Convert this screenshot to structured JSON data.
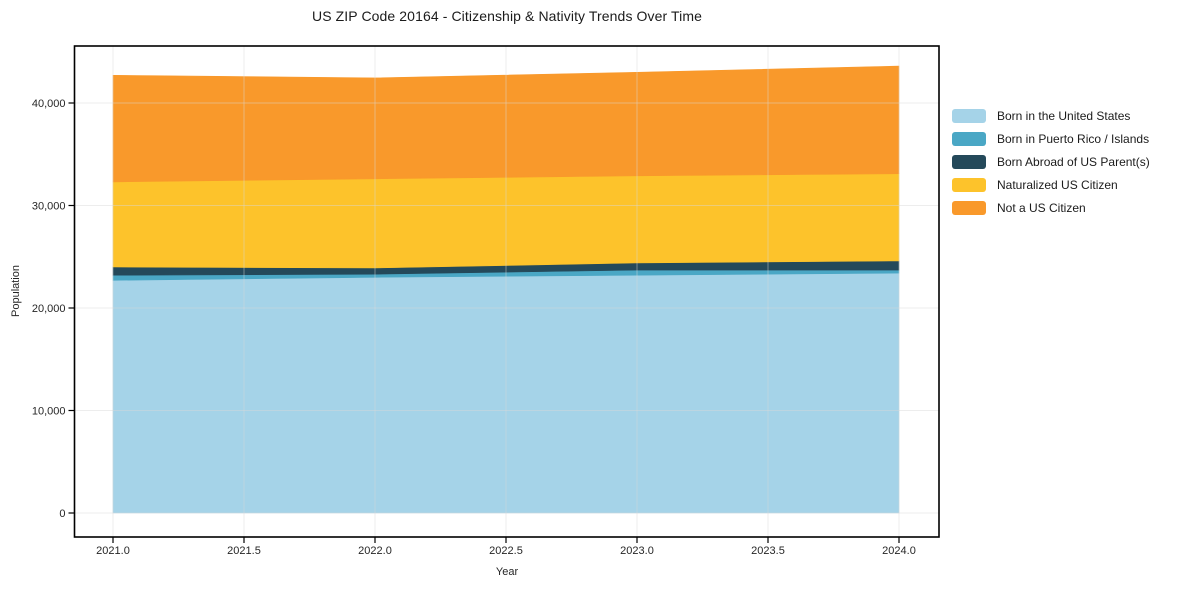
{
  "chart_data": {
    "type": "area",
    "stacked": true,
    "title": "US ZIP Code 20164 - Citizenship & Nativity Trends Over Time",
    "xlabel": "Year",
    "ylabel": "Population",
    "x": [
      2021,
      2022,
      2023,
      2024
    ],
    "series": [
      {
        "name": "Born in the United States",
        "color": "#A5D3E8",
        "values": [
          22700,
          23000,
          23200,
          23400
        ]
      },
      {
        "name": "Born in Puerto Rico / Islands",
        "color": "#4AA7C5",
        "values": [
          500,
          300,
          500,
          300
        ]
      },
      {
        "name": "Born Abroad of US Parent(s)",
        "color": "#24495A",
        "values": [
          800,
          600,
          700,
          900
        ]
      },
      {
        "name": "Naturalized US Citizen",
        "color": "#FDC32B",
        "values": [
          8300,
          8700,
          8500,
          8500
        ]
      },
      {
        "name": "Not a US Citizen",
        "color": "#F9992B",
        "values": [
          10400,
          9850,
          10100,
          10500
        ]
      }
    ],
    "stacked_totals": [
      42700,
      42450,
      43000,
      43600
    ],
    "xticks": {
      "values": [
        2021,
        2021.5,
        2022,
        2022.5,
        2023,
        2023.5,
        2024
      ],
      "labels": [
        "2021.0",
        "2021.5",
        "2022.0",
        "2022.5",
        "2023.0",
        "2023.5",
        "2024.0"
      ]
    },
    "yticks": {
      "values": [
        0,
        10000,
        20000,
        30000,
        40000
      ],
      "labels": [
        "0",
        "10,000",
        "20,000",
        "30,000",
        "40,000"
      ]
    },
    "xlim": [
      2020.855,
      2024.147
    ],
    "ylim": [
      -2340,
      45560
    ],
    "grid": true,
    "legend_position": "right-outside",
    "colors": {
      "frame": "#000000",
      "grid": "#D9D9D9",
      "tick_text": "#262626",
      "background": "#ffffff"
    }
  }
}
